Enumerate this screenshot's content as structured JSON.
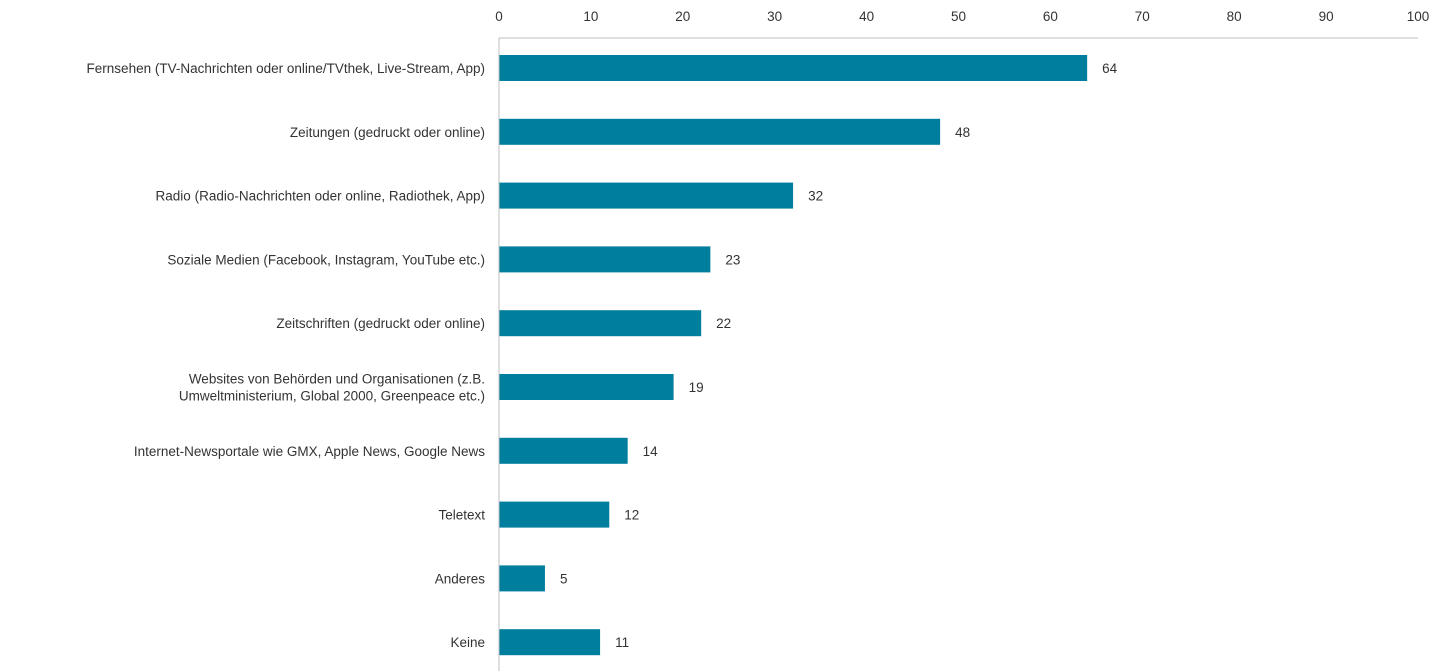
{
  "chart_data": {
    "type": "bar",
    "orientation": "horizontal",
    "title": "",
    "xlabel": "",
    "ylabel": "",
    "categories": [
      [
        "Fernsehen (TV-Nachrichten oder online/TVthek, Live-Stream, App)"
      ],
      [
        "Zeitungen (gedruckt oder online)"
      ],
      [
        "Radio (Radio-Nachrichten oder online, Radiothek, App)"
      ],
      [
        "Soziale Medien (Facebook, Instagram, YouTube etc.)"
      ],
      [
        "Zeitschriften  (gedruckt oder online)"
      ],
      [
        "Websites von Behörden und Organisationen (z.B.",
        "Umweltministerium, Global 2000, Greenpeace etc.)"
      ],
      [
        "Internet-Newsportale wie GMX, Apple News, Google News"
      ],
      [
        "Teletext"
      ],
      [
        "Anderes"
      ],
      [
        "Keine"
      ]
    ],
    "values": [
      64,
      48,
      32,
      23,
      22,
      19,
      14,
      12,
      5,
      11
    ],
    "xlim": [
      0,
      100
    ],
    "xticks": [
      "0",
      "10",
      "20",
      "30",
      "40",
      "50",
      "60",
      "70",
      "80",
      "90",
      "100"
    ],
    "axis_position": "top",
    "grid": false,
    "legend": "none",
    "colors": {
      "bar": "#007e9e",
      "axis": "#bfbfbf",
      "text": "#333333"
    }
  }
}
